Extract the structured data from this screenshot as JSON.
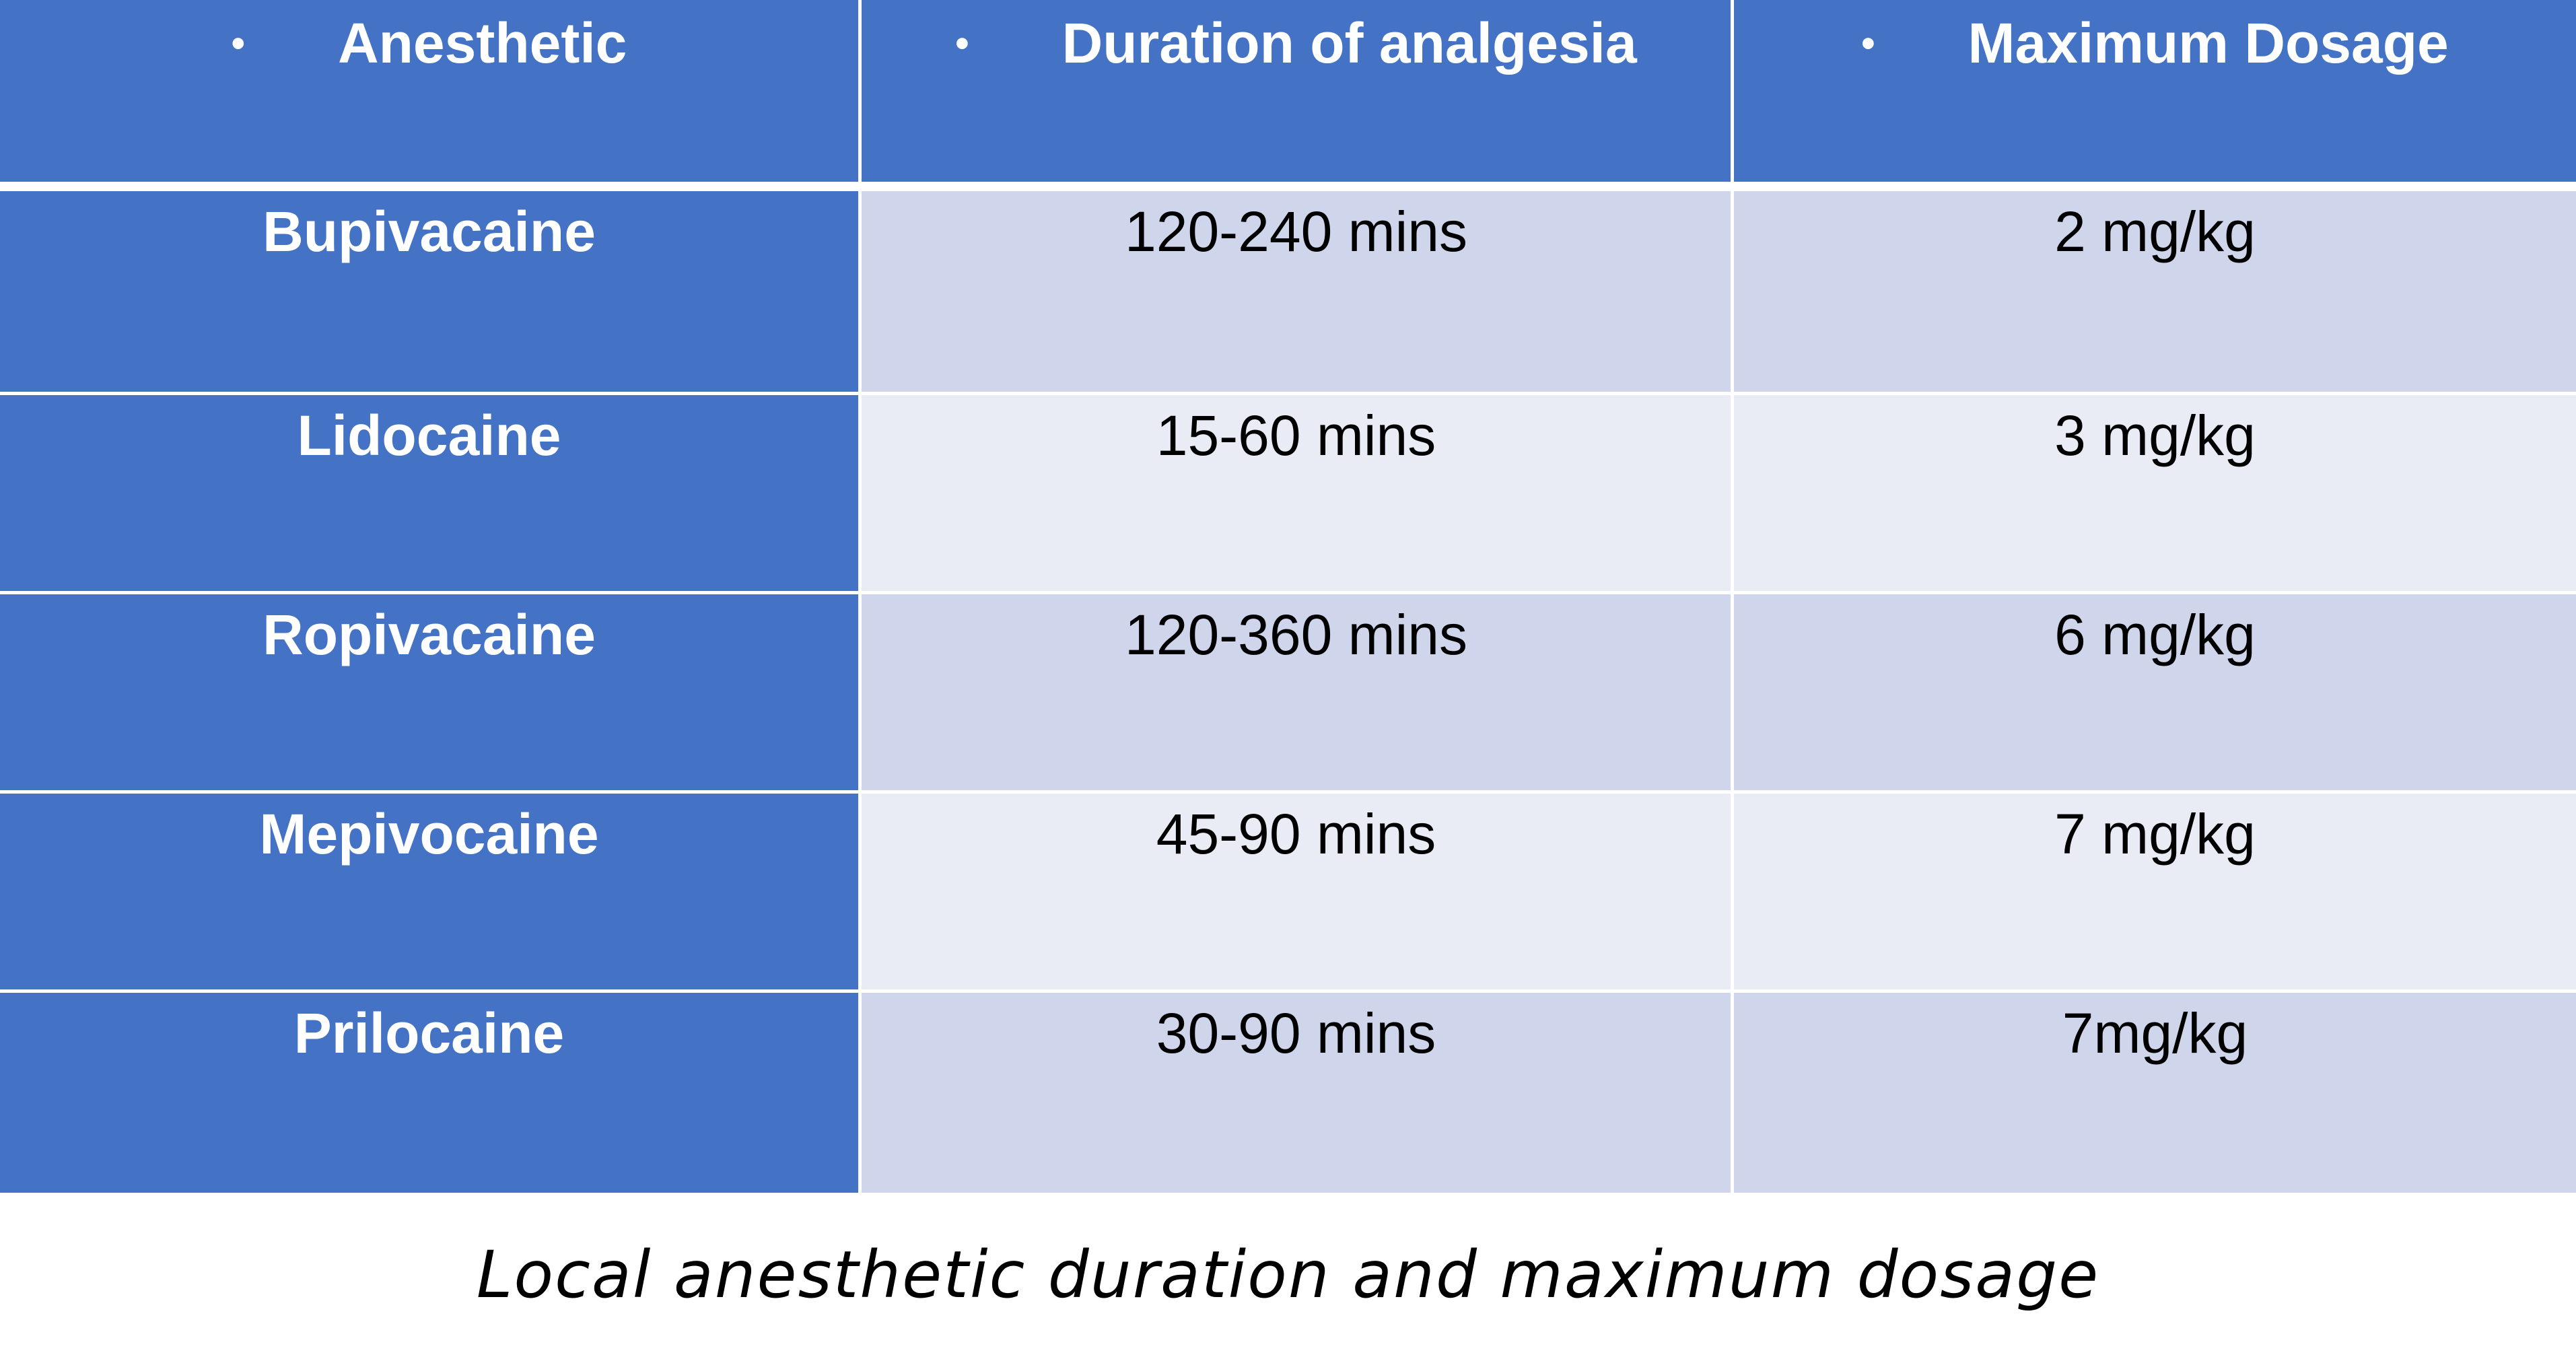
{
  "table": {
    "headers": [
      {
        "bullet": "•",
        "label": "Anesthetic"
      },
      {
        "bullet": "•",
        "label": "Duration of analgesia"
      },
      {
        "bullet": "•",
        "label": "Maximum Dosage"
      }
    ],
    "rows": [
      {
        "anesthetic": "Bupivacaine",
        "duration": "120-240 mins",
        "dosage": "2 mg/kg"
      },
      {
        "anesthetic": "Lidocaine",
        "duration": "15-60 mins",
        "dosage": "3 mg/kg"
      },
      {
        "anesthetic": "Ropivacaine",
        "duration": "120-360 mins",
        "dosage": "6 mg/kg"
      },
      {
        "anesthetic": "Mepivocaine",
        "duration": "45-90 mins",
        "dosage": "7 mg/kg"
      },
      {
        "anesthetic": "Prilocaine",
        "duration": "30-90 mins",
        "dosage": "7mg/kg"
      }
    ]
  },
  "caption": "Local anesthetic duration and maximum dosage",
  "colors": {
    "header_blue": "#4472c4",
    "band_dark": "#cfd5ea",
    "band_light": "#e9ebf5"
  }
}
